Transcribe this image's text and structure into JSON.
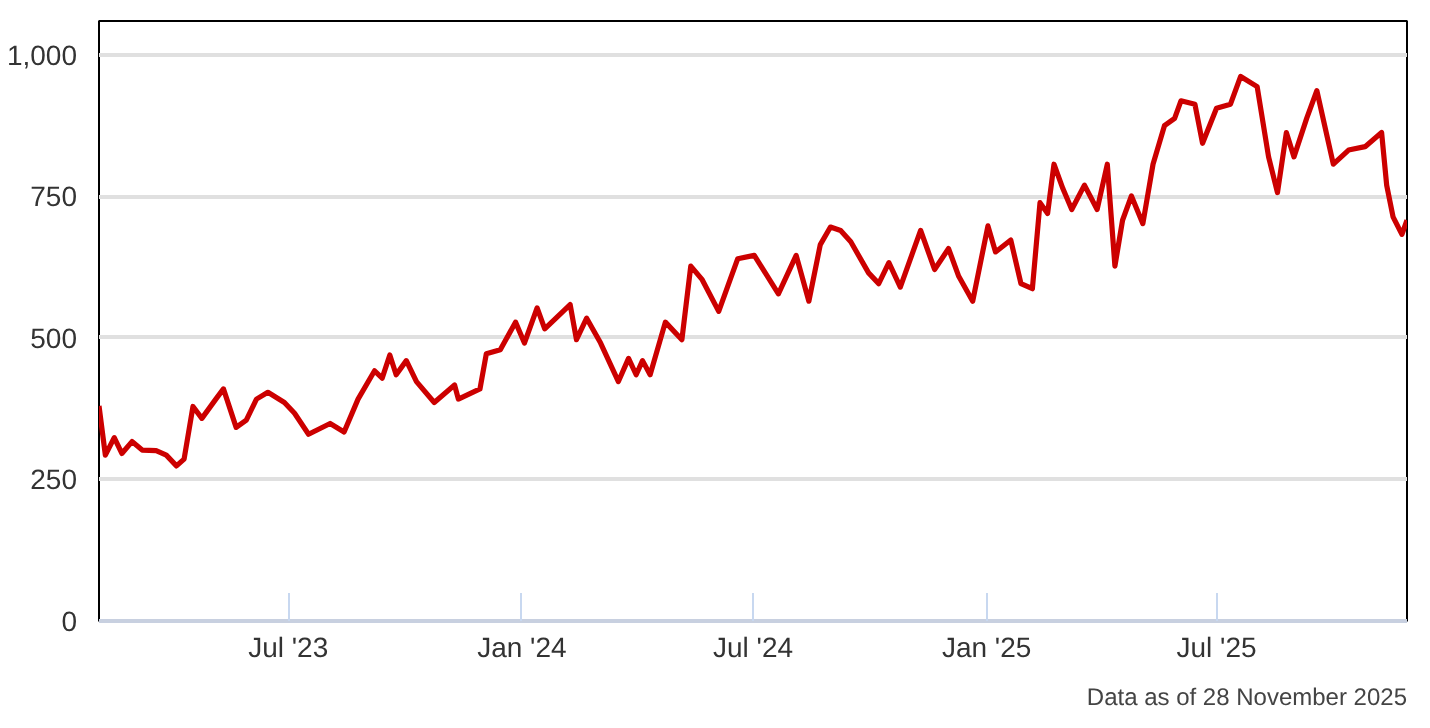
{
  "chart_data": {
    "type": "line",
    "annotations": [
      "Data as of 28 November 2025"
    ],
    "x": [
      "2023-02-02",
      "2023-02-07",
      "2023-02-14",
      "2023-02-20",
      "2023-02-28",
      "2023-03-08",
      "2023-03-19",
      "2023-03-27",
      "2023-04-04",
      "2023-04-10",
      "2023-04-17",
      "2023-04-24",
      "2023-05-05",
      "2023-05-11",
      "2023-05-21",
      "2023-05-29",
      "2023-06-06",
      "2023-06-15",
      "2023-06-28",
      "2023-07-06",
      "2023-07-17",
      "2023-08-03",
      "2023-08-14",
      "2023-08-25",
      "2023-09-07",
      "2023-09-13",
      "2023-09-19",
      "2023-09-24",
      "2023-10-02",
      "2023-10-10",
      "2023-10-24",
      "2023-11-09",
      "2023-11-12",
      "2023-11-29",
      "2023-12-04",
      "2023-12-15",
      "2023-12-27",
      "2024-01-03",
      "2024-01-13",
      "2024-01-19",
      "2024-02-08",
      "2024-02-13",
      "2024-02-21",
      "2024-03-03",
      "2024-03-17",
      "2024-03-25",
      "2024-03-31",
      "2024-04-05",
      "2024-04-11",
      "2024-04-23",
      "2024-05-06",
      "2024-05-13",
      "2024-05-22",
      "2024-06-04",
      "2024-06-13",
      "2024-06-19",
      "2024-07-02",
      "2024-07-21",
      "2024-08-04",
      "2024-08-14",
      "2024-08-23",
      "2024-08-31",
      "2024-09-08",
      "2024-09-16",
      "2024-09-30",
      "2024-10-08",
      "2024-10-16",
      "2024-10-25",
      "2024-11-10",
      "2024-11-21",
      "2024-12-02",
      "2024-12-10",
      "2024-12-21",
      "2025-01-02",
      "2025-01-08",
      "2025-01-20",
      "2025-01-28",
      "2025-02-06",
      "2025-02-12",
      "2025-02-18",
      "2025-02-23",
      "2025-03-02",
      "2025-03-09",
      "2025-03-19",
      "2025-03-29",
      "2025-04-06",
      "2025-04-12",
      "2025-04-18",
      "2025-04-25",
      "2025-05-04",
      "2025-05-12",
      "2025-05-21",
      "2025-05-29",
      "2025-06-03",
      "2025-06-14",
      "2025-06-20",
      "2025-07-01",
      "2025-07-12",
      "2025-07-20",
      "2025-08-02",
      "2025-08-11",
      "2025-08-18",
      "2025-08-25",
      "2025-08-31",
      "2025-09-10",
      "2025-09-18",
      "2025-10-01",
      "2025-10-13",
      "2025-10-26",
      "2025-11-08",
      "2025-11-12",
      "2025-11-17",
      "2025-11-24",
      "2025-11-28"
    ],
    "series": [
      {
        "color": "#cc0000",
        "values": [
          380,
          293,
          324,
          296,
          317,
          302,
          301,
          293,
          274,
          286,
          379,
          358,
          392,
          410,
          342,
          355,
          392,
          404,
          386,
          367,
          330,
          349,
          334,
          392,
          442,
          429,
          470,
          435,
          460,
          423,
          386,
          417,
          392,
          410,
          472,
          479,
          528,
          491,
          553,
          516,
          559,
          497,
          535,
          491,
          423,
          464,
          435,
          460,
          435,
          528,
          497,
          627,
          603,
          547,
          603,
          640,
          646,
          578,
          646,
          565,
          665,
          696,
          690,
          670,
          615,
          596,
          633,
          590,
          690,
          621,
          658,
          609,
          565,
          698,
          652,
          673,
          596,
          587,
          739,
          720,
          807,
          764,
          727,
          770,
          727,
          807,
          627,
          708,
          751,
          702,
          807,
          875,
          888,
          919,
          913,
          844,
          906,
          913,
          962,
          944,
          820,
          757,
          863,
          820,
          888,
          937,
          807,
          832,
          838,
          863,
          770,
          714,
          683,
          708
        ]
      }
    ],
    "xlim": [
      "2023-02-02",
      "2025-11-28"
    ],
    "xticks": [
      {
        "value": "2023-07-01",
        "label": "Jul '23"
      },
      {
        "value": "2024-01-01",
        "label": "Jan '24"
      },
      {
        "value": "2024-07-01",
        "label": "Jul '24"
      },
      {
        "value": "2025-01-01",
        "label": "Jan '25"
      },
      {
        "value": "2025-07-01",
        "label": "Jul '25"
      }
    ],
    "ylim": [
      0,
      1060
    ],
    "yticks": [
      0,
      250,
      500,
      750,
      {
        "value": 1000,
        "label": "1,000"
      }
    ],
    "grid": "y",
    "marker": "none",
    "line_style": "solid"
  }
}
